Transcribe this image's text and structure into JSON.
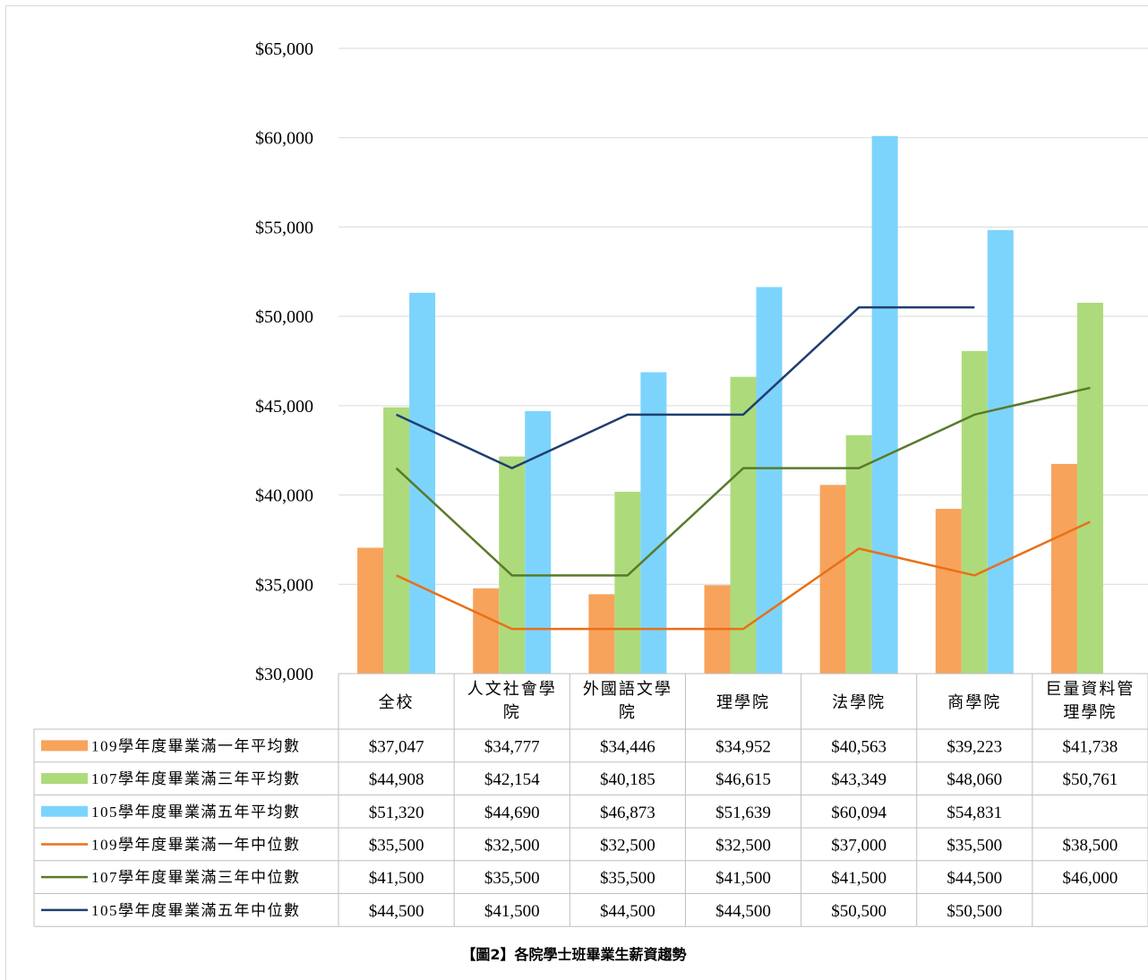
{
  "chart_data": {
    "type": "bar",
    "categories": [
      "全校",
      "人文社會學院",
      "外國語文學院",
      "理學院",
      "法學院",
      "商學院",
      "巨量資料管理學院"
    ],
    "ylim": [
      30000,
      65000
    ],
    "y_ticks": [
      "$30,000",
      "$35,000",
      "$40,000",
      "$45,000",
      "$50,000",
      "$55,000",
      "$60,000",
      "$65,000"
    ],
    "grid": true,
    "legend": "data-table",
    "series": [
      {
        "name": "109學年度畢業滿一年平均數",
        "kind": "bar",
        "color": "#F7A35C",
        "values": [
          37047,
          34777,
          34446,
          34952,
          40563,
          39223,
          41738
        ],
        "labels": [
          "$37,047",
          "$34,777",
          "$34,446",
          "$34,952",
          "$40,563",
          "$39,223",
          "$41,738"
        ]
      },
      {
        "name": "107學年度畢業滿三年平均數",
        "kind": "bar",
        "color": "#ADDB7B",
        "values": [
          44908,
          42154,
          40185,
          46615,
          43349,
          48060,
          50761
        ],
        "labels": [
          "$44,908",
          "$42,154",
          "$40,185",
          "$46,615",
          "$43,349",
          "$48,060",
          "$50,761"
        ]
      },
      {
        "name": "105學年度畢業滿五年平均數",
        "kind": "bar",
        "color": "#7CD4FC",
        "values": [
          51320,
          44690,
          46873,
          51639,
          60094,
          54831,
          null
        ],
        "labels": [
          "$51,320",
          "$44,690",
          "$46,873",
          "$51,639",
          "$60,094",
          "$54,831",
          ""
        ]
      },
      {
        "name": "109學年度畢業滿一年中位數",
        "kind": "line",
        "color": "#E8701A",
        "values": [
          35500,
          32500,
          32500,
          32500,
          37000,
          35500,
          38500
        ],
        "labels": [
          "$35,500",
          "$32,500",
          "$32,500",
          "$32,500",
          "$37,000",
          "$35,500",
          "$38,500"
        ]
      },
      {
        "name": "107學年度畢業滿三年中位數",
        "kind": "line",
        "color": "#5A7A2B",
        "values": [
          41500,
          35500,
          35500,
          41500,
          41500,
          44500,
          46000
        ],
        "labels": [
          "$41,500",
          "$35,500",
          "$35,500",
          "$41,500",
          "$41,500",
          "$44,500",
          "$46,000"
        ]
      },
      {
        "name": "105學年度畢業滿五年中位數",
        "kind": "line",
        "color": "#1F3F70",
        "values": [
          44500,
          41500,
          44500,
          44500,
          50500,
          50500,
          null
        ],
        "labels": [
          "$44,500",
          "$41,500",
          "$44,500",
          "$44,500",
          "$50,500",
          "$50,500",
          ""
        ]
      }
    ],
    "caption": "【圖2】各院學士班畢業生薪資趨勢"
  }
}
